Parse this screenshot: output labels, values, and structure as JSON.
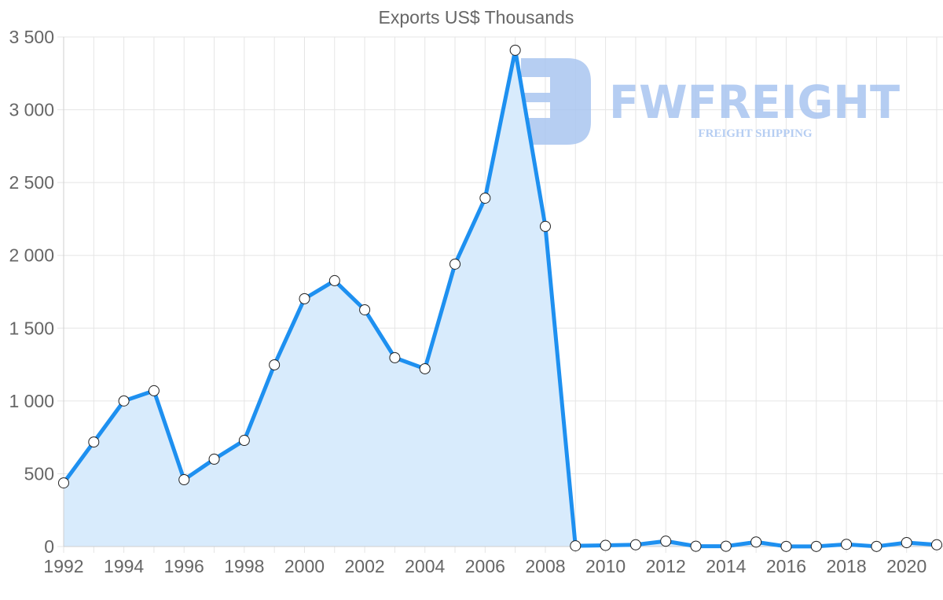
{
  "chart_data": {
    "type": "line",
    "title": "Exports US$ Thousands",
    "xlabel": "",
    "ylabel": "",
    "ylim": [
      0,
      3500
    ],
    "yticks": [
      0,
      500,
      1000,
      1500,
      2000,
      2500,
      3000,
      3500
    ],
    "ytick_labels": [
      "0",
      "500",
      "1 000",
      "1 500",
      "2 000",
      "2 500",
      "3 000",
      "3 500"
    ],
    "xtick_labels": [
      "1992",
      "1994",
      "1996",
      "1998",
      "2000",
      "2002",
      "2004",
      "2006",
      "2008",
      "2010",
      "2012",
      "2014",
      "2016",
      "2018",
      "2020"
    ],
    "grid": true,
    "legend": null,
    "filled_area": true,
    "x": [
      1992,
      1993,
      1994,
      1995,
      1996,
      1997,
      1998,
      1999,
      2000,
      2001,
      2002,
      2003,
      2004,
      2005,
      2006,
      2007,
      2008,
      2009,
      2010,
      2011,
      2012,
      2013,
      2014,
      2015,
      2016,
      2017,
      2018,
      2019,
      2020,
      2021
    ],
    "series": [
      {
        "name": "Exports US$ Thousands",
        "values": [
          437,
          718,
          1000,
          1070,
          459,
          600,
          729,
          1248,
          1702,
          1826,
          1626,
          1297,
          1221,
          1940,
          2393,
          3409,
          2199,
          5,
          8,
          12,
          37,
          2,
          2,
          31,
          1,
          1,
          15,
          1,
          27,
          12
        ]
      }
    ],
    "colors": {
      "line": "#1e90f0",
      "fill": "#d8ebfc",
      "point_fill": "#ffffff",
      "point_stroke": "#222222"
    }
  },
  "watermark": {
    "brand": "FWFREIGHT",
    "tagline": "FREIGHT SHIPPING"
  }
}
